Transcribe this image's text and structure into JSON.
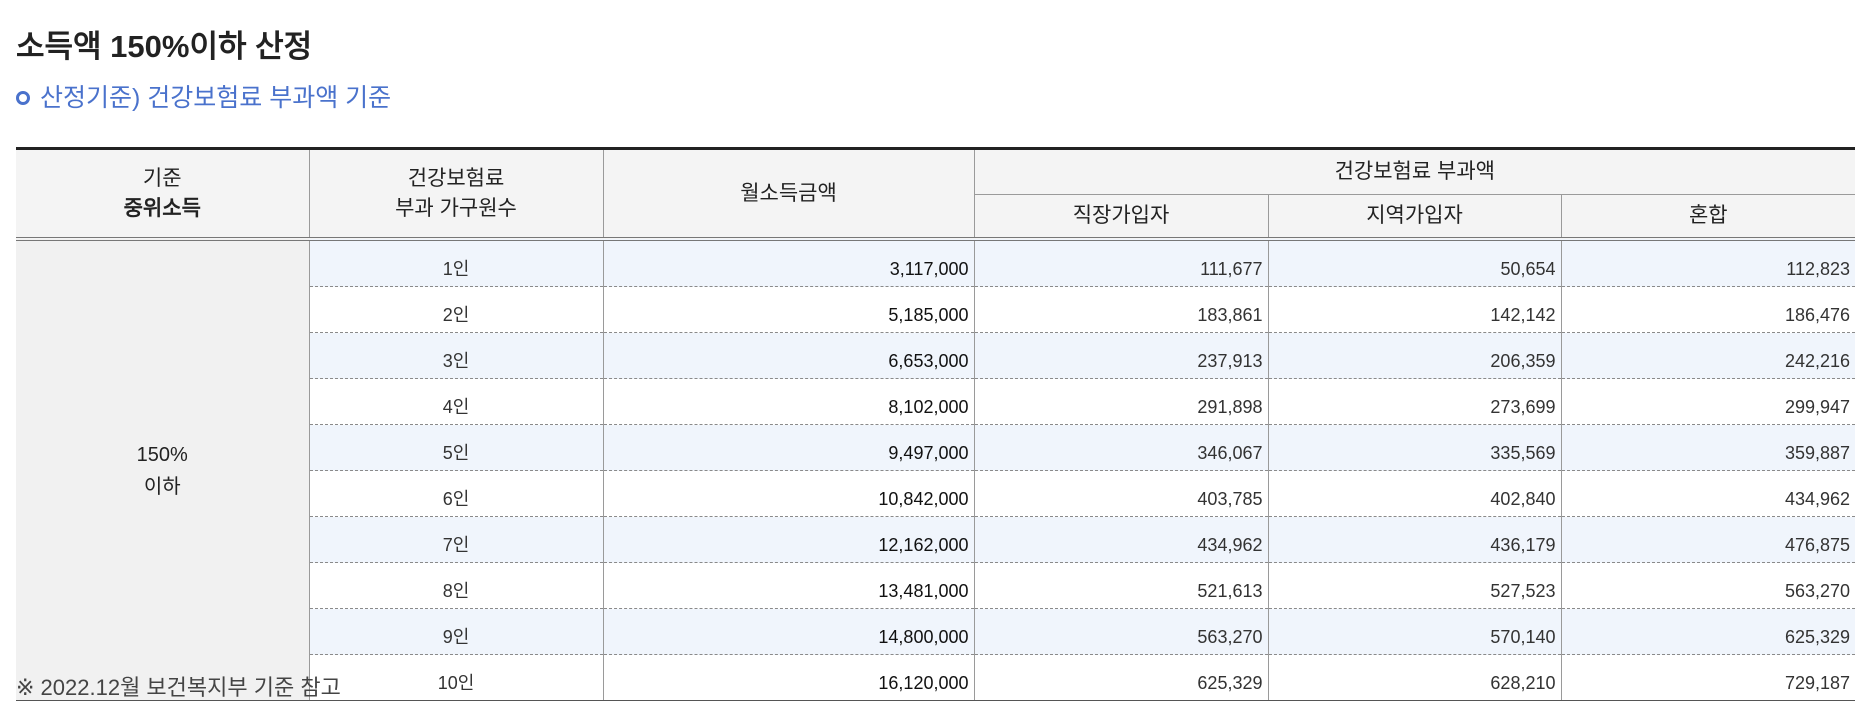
{
  "title": "소득액 150%이하 산정",
  "subtitle": "산정기준) 건강보험료 부과액 기준",
  "table": {
    "headers": {
      "base_line1": "기준",
      "base_line2": "중위소득",
      "persons_line1": "건강보험료",
      "persons_line2": "부과 가구원수",
      "income": "월소득금액",
      "premium_group": "건강보험료 부과액",
      "employee": "직장가입자",
      "regional": "지역가입자",
      "mixed": "혼합"
    },
    "base_label_line1": "150%",
    "base_label_line2": "이하",
    "rows": [
      {
        "persons": "1인",
        "income": "3,117,000",
        "employee": "111,677",
        "regional": "50,654",
        "mixed": "112,823"
      },
      {
        "persons": "2인",
        "income": "5,185,000",
        "employee": "183,861",
        "regional": "142,142",
        "mixed": "186,476"
      },
      {
        "persons": "3인",
        "income": "6,653,000",
        "employee": "237,913",
        "regional": "206,359",
        "mixed": "242,216"
      },
      {
        "persons": "4인",
        "income": "8,102,000",
        "employee": "291,898",
        "regional": "273,699",
        "mixed": "299,947"
      },
      {
        "persons": "5인",
        "income": "9,497,000",
        "employee": "346,067",
        "regional": "335,569",
        "mixed": "359,887"
      },
      {
        "persons": "6인",
        "income": "10,842,000",
        "employee": "403,785",
        "regional": "402,840",
        "mixed": "434,962"
      },
      {
        "persons": "7인",
        "income": "12,162,000",
        "employee": "434,962",
        "regional": "436,179",
        "mixed": "476,875"
      },
      {
        "persons": "8인",
        "income": "13,481,000",
        "employee": "521,613",
        "regional": "527,523",
        "mixed": "563,270"
      },
      {
        "persons": "9인",
        "income": "14,800,000",
        "employee": "563,270",
        "regional": "570,140",
        "mixed": "625,329"
      },
      {
        "persons": "10인",
        "income": "16,120,000",
        "employee": "625,329",
        "regional": "628,210",
        "mixed": "729,187"
      }
    ]
  },
  "footnote": "※ 2022.12월 보건복지부 기준 참고",
  "colors": {
    "subtitle_accent": "#4a72cc",
    "header_bg": "#f4f4f4",
    "alt_row_bg": "#f0f5fc",
    "base_cell_bg": "#f1f1f1"
  }
}
